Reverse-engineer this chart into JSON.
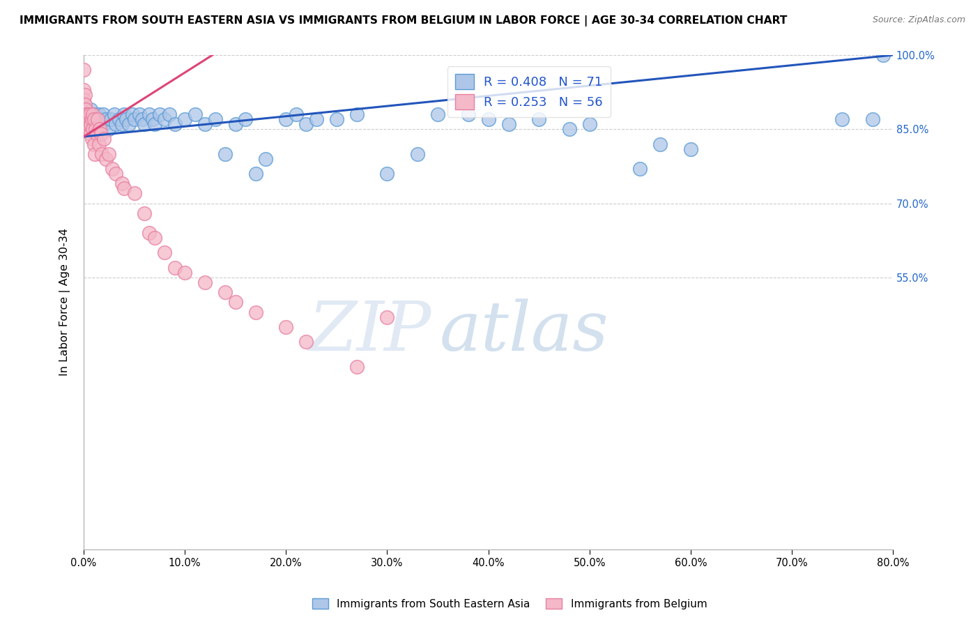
{
  "title": "IMMIGRANTS FROM SOUTH EASTERN ASIA VS IMMIGRANTS FROM BELGIUM IN LABOR FORCE | AGE 30-34 CORRELATION CHART",
  "source": "Source: ZipAtlas.com",
  "ylabel": "In Labor Force | Age 30-34",
  "legend_label_blue": "Immigrants from South Eastern Asia",
  "legend_label_pink": "Immigrants from Belgium",
  "R_blue": 0.408,
  "N_blue": 71,
  "R_pink": 0.253,
  "N_pink": 56,
  "blue_color": "#aec6e8",
  "blue_edge": "#5b9bd5",
  "pink_color": "#f4b8c8",
  "pink_edge": "#e87fa0",
  "trend_blue": "#2255bb",
  "trend_pink": "#dd4477",
  "watermark_color": "#d0dce8",
  "xmin": 0.0,
  "xmax": 0.8,
  "ymin": 0.0,
  "ymax": 1.0,
  "blue_trend_x0": 0.0,
  "blue_trend_x1": 0.8,
  "blue_trend_y0": 0.835,
  "blue_trend_y1": 1.0,
  "pink_trend_x0": 0.0,
  "pink_trend_x1": 0.135,
  "pink_trend_y0": 0.835,
  "pink_trend_y1": 1.01,
  "blue_x": [
    0.0,
    0.001,
    0.002,
    0.003,
    0.004,
    0.005,
    0.006,
    0.007,
    0.008,
    0.009,
    0.01,
    0.011,
    0.012,
    0.013,
    0.015,
    0.016,
    0.018,
    0.019,
    0.02,
    0.022,
    0.025,
    0.027,
    0.03,
    0.032,
    0.035,
    0.038,
    0.04,
    0.042,
    0.045,
    0.048,
    0.05,
    0.055,
    0.058,
    0.06,
    0.065,
    0.068,
    0.07,
    0.075,
    0.08,
    0.085,
    0.09,
    0.1,
    0.11,
    0.12,
    0.13,
    0.14,
    0.15,
    0.16,
    0.17,
    0.18,
    0.2,
    0.21,
    0.22,
    0.23,
    0.25,
    0.27,
    0.3,
    0.33,
    0.35,
    0.38,
    0.4,
    0.42,
    0.45,
    0.48,
    0.5,
    0.55,
    0.57,
    0.6,
    0.75,
    0.78,
    0.79
  ],
  "blue_y": [
    0.87,
    0.88,
    0.86,
    0.87,
    0.86,
    0.88,
    0.87,
    0.89,
    0.86,
    0.85,
    0.87,
    0.88,
    0.86,
    0.87,
    0.88,
    0.86,
    0.87,
    0.88,
    0.86,
    0.87,
    0.85,
    0.87,
    0.88,
    0.86,
    0.87,
    0.86,
    0.88,
    0.87,
    0.86,
    0.88,
    0.87,
    0.88,
    0.87,
    0.86,
    0.88,
    0.87,
    0.86,
    0.88,
    0.87,
    0.88,
    0.86,
    0.87,
    0.88,
    0.86,
    0.87,
    0.8,
    0.86,
    0.87,
    0.76,
    0.79,
    0.87,
    0.88,
    0.86,
    0.87,
    0.87,
    0.88,
    0.76,
    0.8,
    0.88,
    0.88,
    0.87,
    0.86,
    0.87,
    0.85,
    0.86,
    0.77,
    0.82,
    0.81,
    0.87,
    0.87,
    1.0
  ],
  "pink_x": [
    0.0,
    0.0,
    0.0,
    0.001,
    0.001,
    0.001,
    0.002,
    0.002,
    0.002,
    0.003,
    0.003,
    0.003,
    0.004,
    0.004,
    0.005,
    0.005,
    0.006,
    0.006,
    0.007,
    0.007,
    0.008,
    0.008,
    0.009,
    0.009,
    0.01,
    0.01,
    0.011,
    0.012,
    0.013,
    0.014,
    0.015,
    0.016,
    0.017,
    0.018,
    0.02,
    0.022,
    0.025,
    0.028,
    0.032,
    0.038,
    0.04,
    0.05,
    0.06,
    0.065,
    0.07,
    0.08,
    0.09,
    0.1,
    0.12,
    0.14,
    0.15,
    0.17,
    0.2,
    0.22,
    0.27,
    0.3
  ],
  "pink_y": [
    0.97,
    0.93,
    0.91,
    0.92,
    0.9,
    0.88,
    0.89,
    0.87,
    0.86,
    0.88,
    0.86,
    0.85,
    0.87,
    0.88,
    0.87,
    0.86,
    0.87,
    0.88,
    0.86,
    0.84,
    0.87,
    0.83,
    0.85,
    0.88,
    0.82,
    0.87,
    0.8,
    0.85,
    0.84,
    0.87,
    0.82,
    0.85,
    0.84,
    0.8,
    0.83,
    0.79,
    0.8,
    0.77,
    0.76,
    0.74,
    0.73,
    0.72,
    0.68,
    0.64,
    0.63,
    0.6,
    0.57,
    0.56,
    0.54,
    0.52,
    0.5,
    0.48,
    0.45,
    0.42,
    0.37,
    0.47
  ],
  "ytick_vals": [
    0.55,
    0.7,
    0.85,
    1.0
  ],
  "ytick_labels": [
    "55.0%",
    "70.0%",
    "85.0%",
    "100.0%"
  ],
  "xtick_vals": [
    0.0,
    0.1,
    0.2,
    0.3,
    0.4,
    0.5,
    0.6,
    0.7,
    0.8
  ],
  "xtick_labels": [
    "0.0%",
    "10.0%",
    "20.0%",
    "30.0%",
    "40.0%",
    "50.0%",
    "60.0%",
    "70.0%",
    "80.0%"
  ]
}
